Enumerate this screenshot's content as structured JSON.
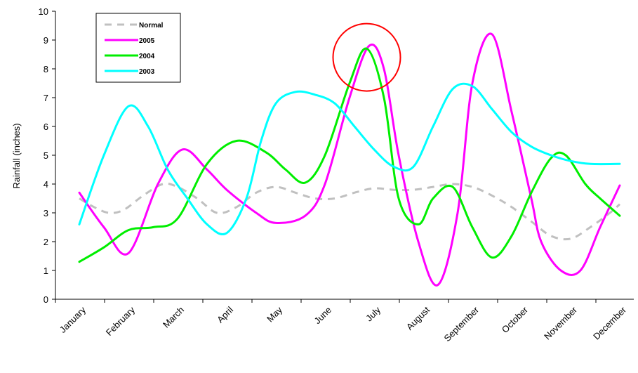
{
  "chart_data": {
    "type": "line",
    "title": "",
    "xlabel": "",
    "ylabel": "Rainfall (inches)",
    "ylim": [
      0,
      10
    ],
    "yticks": [
      0,
      1,
      2,
      3,
      4,
      5,
      6,
      7,
      8,
      9,
      10
    ],
    "categories": [
      "January",
      "February",
      "March",
      "April",
      "May",
      "June",
      "July",
      "August",
      "September",
      "October",
      "November",
      "December"
    ],
    "series": [
      {
        "name": "Normal",
        "color": "#c0c0c0",
        "dashed": true,
        "x": [
          0.0,
          0.3,
          0.6,
          0.9,
          1.3,
          1.7,
          2.0,
          2.4,
          2.8,
          3.2,
          3.6,
          4.0,
          4.4,
          4.8,
          5.2,
          5.6,
          6.0,
          6.4,
          6.8,
          7.2,
          7.6,
          8.0,
          8.4,
          8.8,
          9.2,
          9.6,
          10.0,
          10.4,
          10.8,
          11.0
        ],
        "y": [
          3.5,
          3.2,
          3.0,
          3.1,
          3.6,
          4.0,
          3.9,
          3.5,
          3.0,
          3.2,
          3.7,
          3.9,
          3.7,
          3.5,
          3.5,
          3.7,
          3.85,
          3.8,
          3.8,
          3.9,
          4.0,
          3.9,
          3.6,
          3.2,
          2.7,
          2.2,
          2.1,
          2.5,
          3.0,
          3.3
        ]
      },
      {
        "name": "2005",
        "color": "#ff00ff",
        "dashed": false,
        "x": [
          0.0,
          0.5,
          1.0,
          1.6,
          2.1,
          2.6,
          3.0,
          3.6,
          4.0,
          4.6,
          5.0,
          5.5,
          5.9,
          6.2,
          6.5,
          6.9,
          7.3,
          7.7,
          8.0,
          8.4,
          8.8,
          9.2,
          9.4,
          9.8,
          10.2,
          10.6,
          11.0
        ],
        "y": [
          3.7,
          2.5,
          1.6,
          4.0,
          5.2,
          4.5,
          3.8,
          3.0,
          2.65,
          2.9,
          4.0,
          7.0,
          8.8,
          8.0,
          5.0,
          2.0,
          0.5,
          3.0,
          7.5,
          9.2,
          6.5,
          3.5,
          2.0,
          1.0,
          1.0,
          2.5,
          3.95
        ]
      },
      {
        "name": "2004",
        "color": "#00ee00",
        "dashed": false,
        "x": [
          0.0,
          0.5,
          1.0,
          1.5,
          2.0,
          2.6,
          3.2,
          3.8,
          4.2,
          4.6,
          5.0,
          5.5,
          5.85,
          6.2,
          6.5,
          6.9,
          7.2,
          7.6,
          8.0,
          8.4,
          8.8,
          9.2,
          9.6,
          9.9,
          10.3,
          10.6,
          11.0
        ],
        "y": [
          1.3,
          1.8,
          2.4,
          2.5,
          2.8,
          4.7,
          5.5,
          5.1,
          4.5,
          4.05,
          5.0,
          7.5,
          8.7,
          7.0,
          3.5,
          2.6,
          3.5,
          3.9,
          2.5,
          1.45,
          2.2,
          3.7,
          4.9,
          5.0,
          4.0,
          3.5,
          2.9
        ]
      },
      {
        "name": "2003",
        "color": "#00ffff",
        "dashed": false,
        "x": [
          0.0,
          0.5,
          1.0,
          1.4,
          1.8,
          2.2,
          2.6,
          3.0,
          3.4,
          3.7,
          4.0,
          4.4,
          4.8,
          5.2,
          5.6,
          6.0,
          6.4,
          6.8,
          7.2,
          7.6,
          8.0,
          8.4,
          8.8,
          9.2,
          9.6,
          10.0,
          10.4,
          11.0
        ],
        "y": [
          2.6,
          5.0,
          6.7,
          6.0,
          4.5,
          3.5,
          2.6,
          2.3,
          3.5,
          5.5,
          6.8,
          7.2,
          7.1,
          6.8,
          6.0,
          5.2,
          4.6,
          4.6,
          6.0,
          7.3,
          7.4,
          6.6,
          5.8,
          5.3,
          5.0,
          4.8,
          4.7,
          4.7
        ]
      }
    ],
    "legend": {
      "placement": "top-left",
      "entries": [
        "Normal",
        "2005",
        "2004",
        "2003"
      ]
    },
    "annotation": {
      "type": "circle",
      "color": "#ff0000",
      "x": 5.85,
      "y": 8.4
    },
    "grid": false
  }
}
